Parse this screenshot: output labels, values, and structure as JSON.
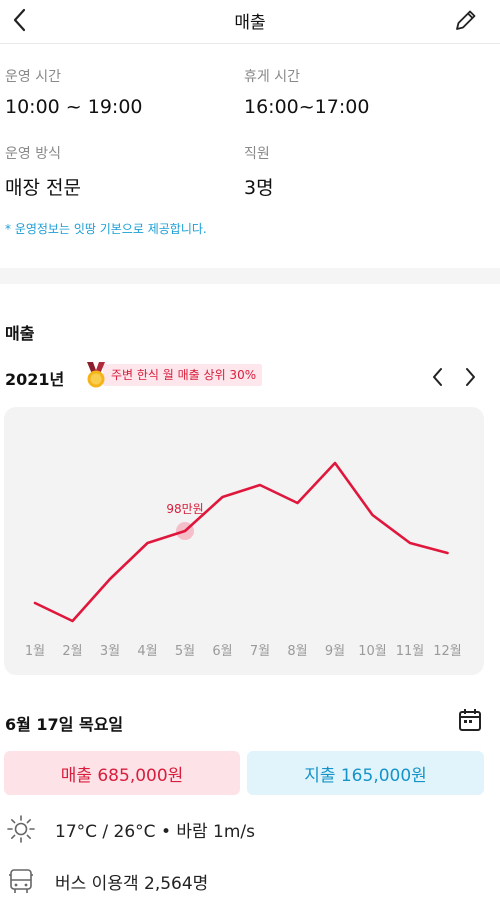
{
  "header": {
    "title": "매출",
    "back_icon": "chevron-left-icon",
    "edit_icon": "pencil-icon"
  },
  "info": {
    "hours_label": "운영 시간",
    "hours_value": "10:00 ~ 19:00",
    "break_label": "휴게 시간",
    "break_value": "16:00~17:00",
    "method_label": "운영 방식",
    "method_value": "매장 전문",
    "staff_label": "직원",
    "staff_value": "3명",
    "note": "* 운영정보는 잇땅 기본으로 제공합니다."
  },
  "sales": {
    "section_title": "매출",
    "year": "2021년",
    "badge_text": "주변 한식 월 매출 상위 30%",
    "badge_icon": "medal-icon",
    "prev_icon": "chevron-left-icon",
    "next_icon": "chevron-right-icon"
  },
  "chart_data": {
    "type": "line",
    "categories": [
      "1월",
      "2월",
      "3월",
      "4월",
      "5월",
      "6월",
      "7월",
      "8월",
      "9월",
      "10월",
      "11월",
      "12월"
    ],
    "series": [
      {
        "values": [
          62,
          53,
          74,
          92,
          98,
          115,
          121,
          112,
          132,
          106,
          92,
          87
        ]
      }
    ],
    "highlight": {
      "index": 4,
      "label": "98만원"
    },
    "ylim": [
      40,
      140
    ],
    "grid": false,
    "line_color": "#e0173d",
    "highlight_color": "#f4b5c2"
  },
  "day": {
    "date": "6월 17일 목요일",
    "calendar_icon": "calendar-icon",
    "sales_text": "매출 685,000원",
    "expense_text": "지출 165,000원",
    "weather_icon": "sun-icon",
    "weather_text": "17°C / 26°C • 바람 1m/s",
    "bus_icon": "bus-icon",
    "bus_text": "버스 이용객 2,564명"
  },
  "colors": {
    "accent_red": "#d81e3c",
    "accent_blue": "#1494c9",
    "note_blue": "#1a9ed6"
  }
}
